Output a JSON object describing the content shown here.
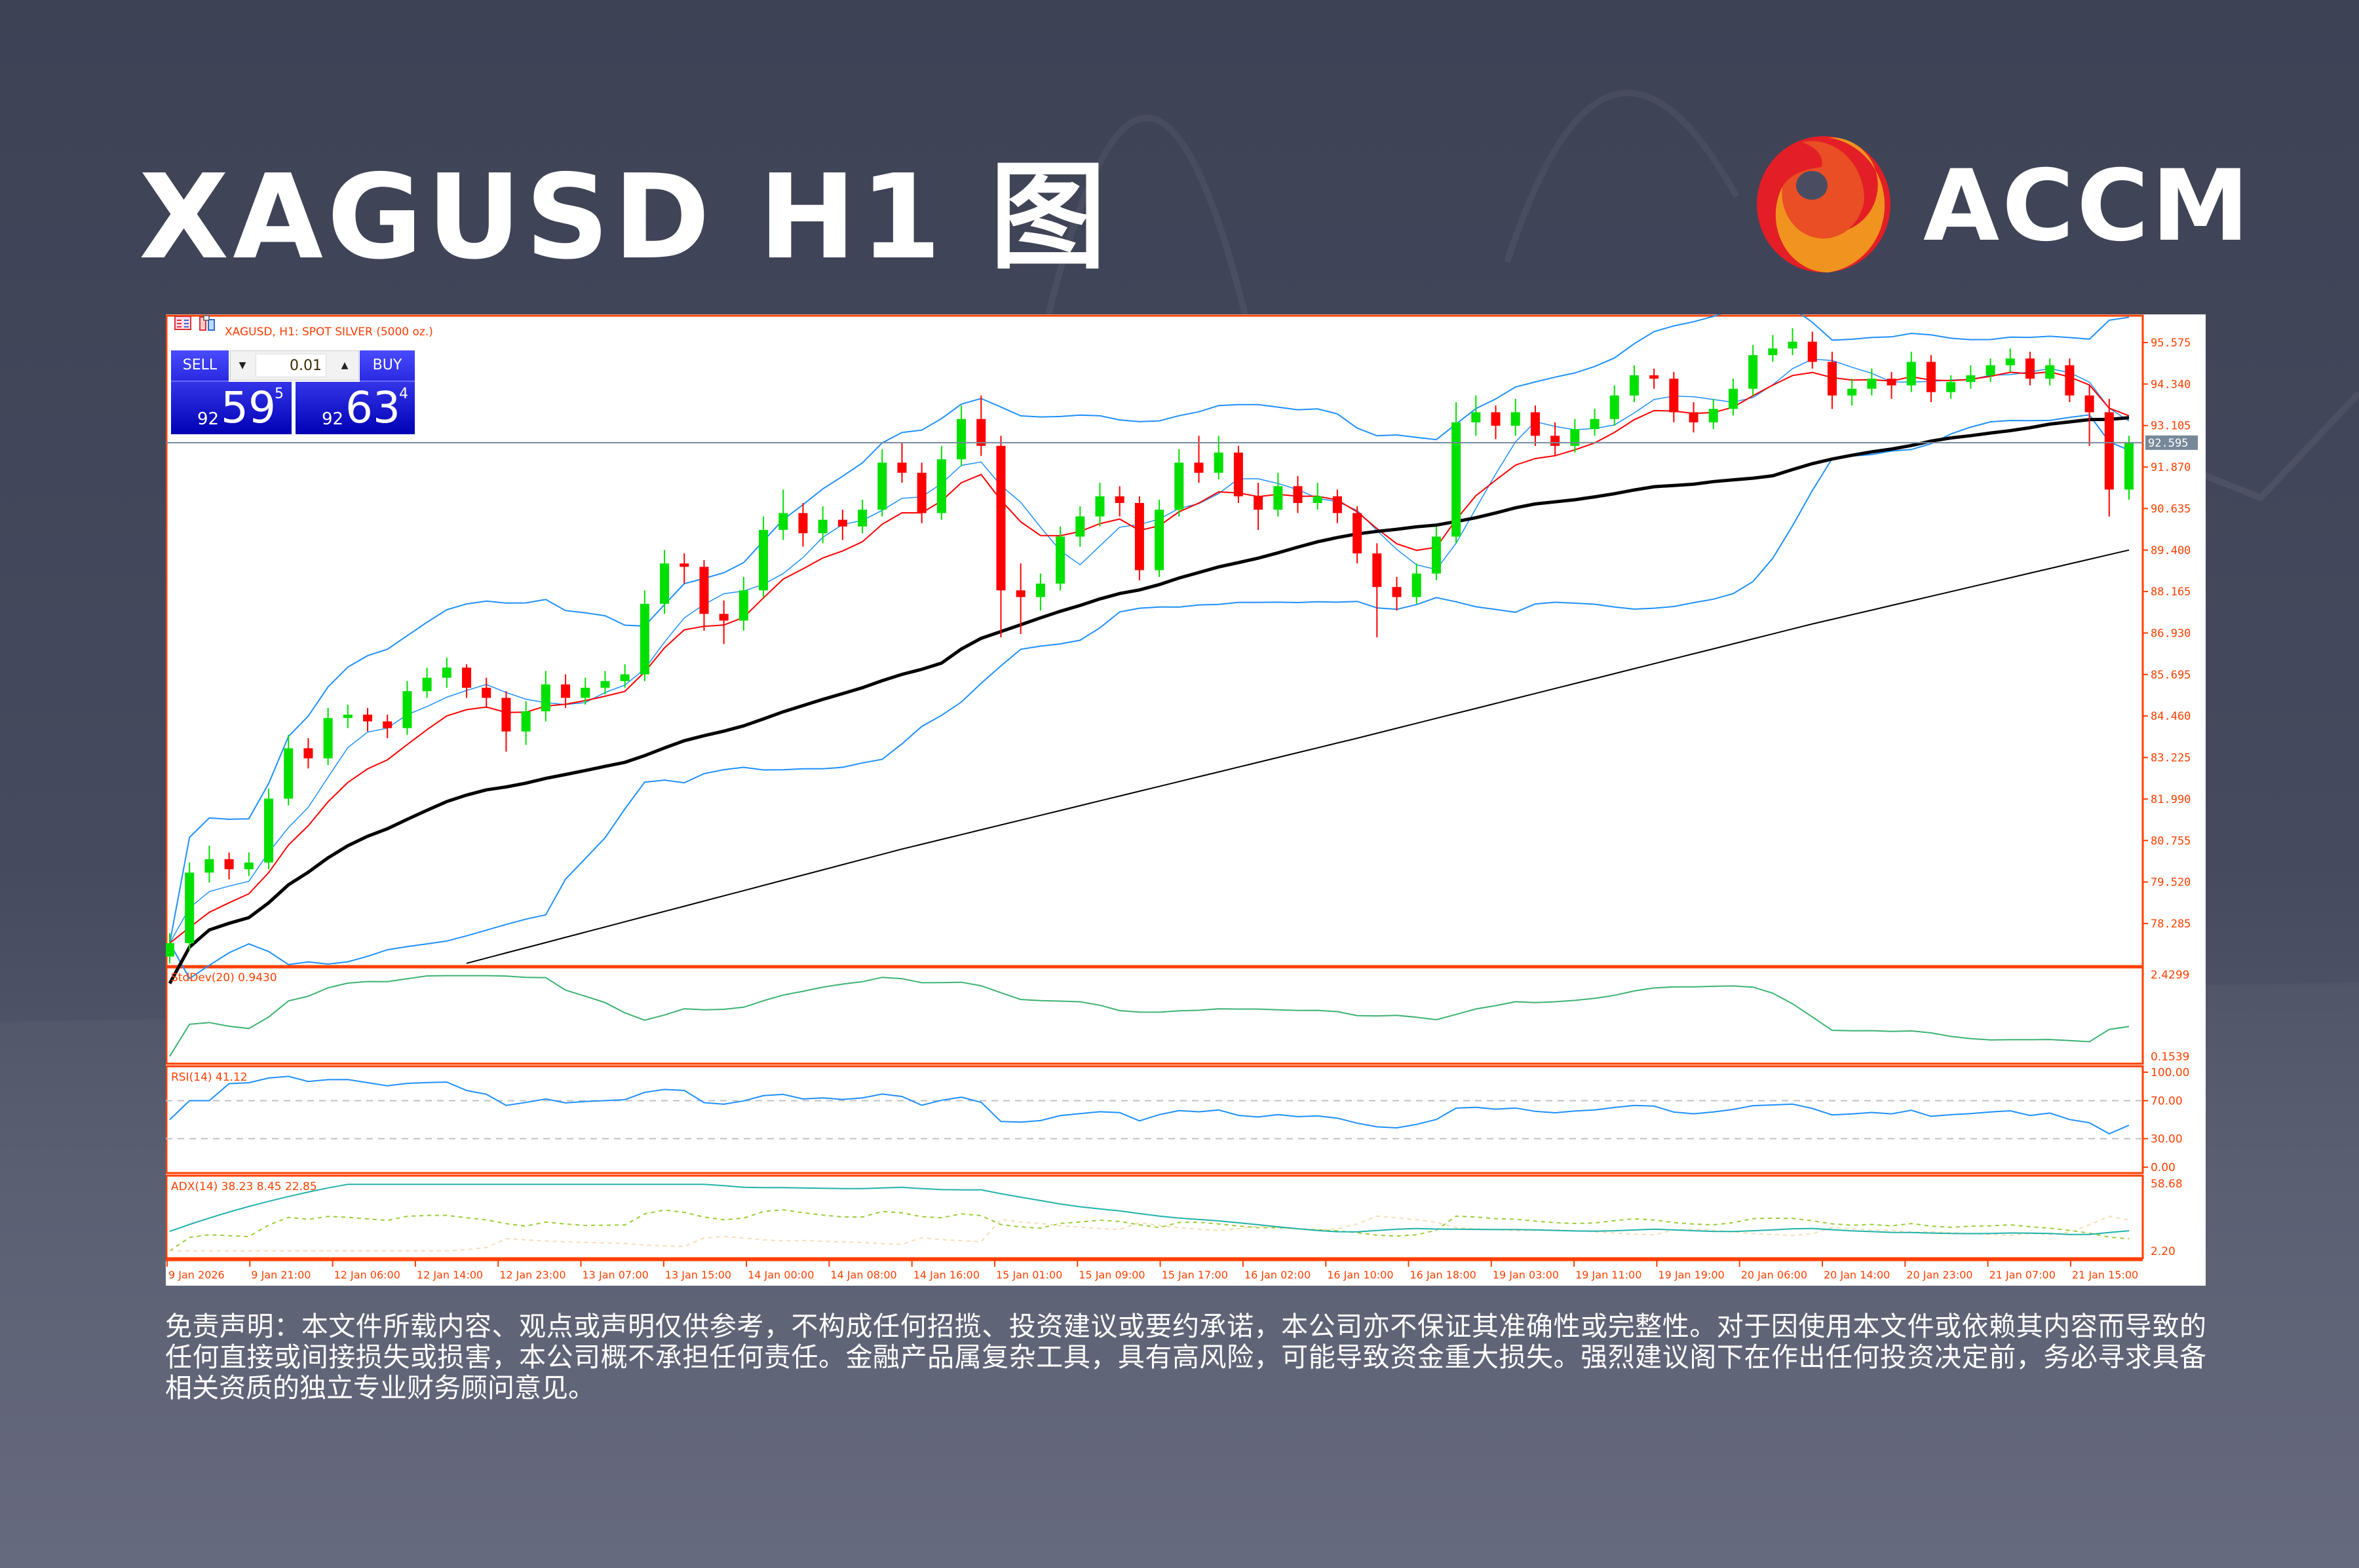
{
  "header": {
    "title": "XAGUSD H1 图"
  },
  "logo": {
    "text": "ACCM",
    "colors": {
      "red": "#e31e26",
      "orange_red": "#e94e24",
      "orange": "#f0931f"
    }
  },
  "chart_window": {
    "title": "XAGUSD, H1:  SPOT SILVER (5000 oz.)",
    "icons": [
      "one-click-trading-icon",
      "chart-properties-icon"
    ],
    "trade_panel": {
      "sell_label": "SELL",
      "buy_label": "BUY",
      "lot": "0.01",
      "sell_price": {
        "prefix": "92",
        "main": "59",
        "sup": "5"
      },
      "buy_price": {
        "prefix": "92",
        "main": "63",
        "sup": "4"
      }
    },
    "current_price_label": "92.595",
    "colors": {
      "bull": "#00e000",
      "bear": "#ff0000",
      "bands": "#1e90ff",
      "fast_ma": "#ff0000",
      "slow_ma": "#000000",
      "axis": "#ff4000"
    }
  },
  "chart_data": {
    "type": "candlestick",
    "symbol": "XAGUSD",
    "timeframe": "H1",
    "price_ticks": [
      "95.575",
      "94.340",
      "93.105",
      "91.870",
      "90.635",
      "89.400",
      "88.165",
      "86.930",
      "85.695",
      "84.460",
      "83.225",
      "81.990",
      "80.755",
      "79.520",
      "78.285"
    ],
    "current_price": 92.595,
    "ohlc": [
      [
        77.3,
        78.0,
        77.1,
        77.7
      ],
      [
        77.7,
        80.1,
        77.5,
        79.8
      ],
      [
        79.8,
        80.6,
        79.5,
        80.2
      ],
      [
        80.2,
        80.4,
        79.6,
        79.9
      ],
      [
        79.9,
        80.4,
        79.7,
        80.1
      ],
      [
        80.1,
        82.3,
        79.9,
        82.0
      ],
      [
        82.0,
        83.9,
        81.8,
        83.5
      ],
      [
        83.5,
        83.8,
        82.9,
        83.2
      ],
      [
        83.2,
        84.7,
        83.0,
        84.4
      ],
      [
        84.4,
        84.8,
        84.1,
        84.5
      ],
      [
        84.5,
        84.7,
        84.0,
        84.3
      ],
      [
        84.3,
        84.5,
        83.8,
        84.1
      ],
      [
        84.1,
        85.5,
        83.9,
        85.2
      ],
      [
        85.2,
        85.9,
        85.0,
        85.6
      ],
      [
        85.6,
        86.2,
        85.3,
        85.9
      ],
      [
        85.9,
        86.0,
        85.0,
        85.3
      ],
      [
        85.3,
        85.6,
        84.7,
        85.0
      ],
      [
        85.0,
        85.2,
        83.4,
        84.0
      ],
      [
        84.0,
        84.9,
        83.6,
        84.6
      ],
      [
        84.6,
        85.8,
        84.3,
        85.4
      ],
      [
        85.4,
        85.7,
        84.7,
        85.0
      ],
      [
        85.0,
        85.6,
        84.8,
        85.3
      ],
      [
        85.3,
        85.8,
        85.1,
        85.5
      ],
      [
        85.5,
        86.0,
        85.3,
        85.7
      ],
      [
        85.7,
        88.2,
        85.5,
        87.8
      ],
      [
        87.8,
        89.4,
        87.5,
        89.0
      ],
      [
        89.0,
        89.3,
        88.4,
        88.9
      ],
      [
        88.9,
        89.1,
        87.0,
        87.5
      ],
      [
        87.5,
        87.9,
        86.6,
        87.3
      ],
      [
        87.3,
        88.6,
        87.0,
        88.2
      ],
      [
        88.2,
        90.4,
        88.0,
        90.0
      ],
      [
        90.0,
        91.2,
        89.7,
        90.5
      ],
      [
        90.5,
        90.8,
        89.5,
        89.9
      ],
      [
        89.9,
        90.7,
        89.6,
        90.3
      ],
      [
        90.3,
        90.6,
        89.7,
        90.1
      ],
      [
        90.1,
        90.9,
        89.9,
        90.6
      ],
      [
        90.6,
        92.4,
        90.4,
        92.0
      ],
      [
        92.0,
        92.6,
        91.4,
        91.7
      ],
      [
        91.7,
        92.0,
        90.2,
        90.5
      ],
      [
        90.5,
        92.5,
        90.3,
        92.1
      ],
      [
        92.1,
        93.7,
        91.9,
        93.3
      ],
      [
        93.3,
        94.0,
        92.2,
        92.5
      ],
      [
        92.5,
        92.8,
        86.8,
        88.2
      ],
      [
        88.2,
        89.0,
        86.9,
        88.0
      ],
      [
        88.0,
        88.7,
        87.6,
        88.4
      ],
      [
        88.4,
        90.1,
        88.2,
        89.8
      ],
      [
        89.8,
        90.7,
        89.5,
        90.4
      ],
      [
        90.4,
        91.4,
        90.1,
        91.0
      ],
      [
        91.0,
        91.3,
        90.4,
        90.8
      ],
      [
        90.8,
        91.0,
        88.5,
        88.8
      ],
      [
        88.8,
        90.9,
        88.6,
        90.6
      ],
      [
        90.6,
        92.4,
        90.4,
        92.0
      ],
      [
        92.0,
        92.8,
        91.4,
        91.7
      ],
      [
        91.7,
        92.8,
        91.5,
        92.3
      ],
      [
        92.3,
        92.5,
        90.8,
        91.0
      ],
      [
        91.0,
        91.4,
        90.0,
        90.6
      ],
      [
        90.6,
        91.7,
        90.4,
        91.3
      ],
      [
        91.3,
        91.6,
        90.5,
        90.8
      ],
      [
        90.8,
        91.4,
        90.6,
        91.0
      ],
      [
        91.0,
        91.2,
        90.2,
        90.5
      ],
      [
        90.5,
        90.7,
        89.0,
        89.3
      ],
      [
        89.3,
        89.6,
        86.8,
        88.3
      ],
      [
        88.3,
        88.6,
        87.6,
        88.0
      ],
      [
        88.0,
        89.0,
        87.8,
        88.7
      ],
      [
        88.7,
        90.1,
        88.5,
        89.8
      ],
      [
        89.8,
        93.8,
        89.6,
        93.2
      ],
      [
        93.2,
        94.0,
        92.8,
        93.5
      ],
      [
        93.5,
        93.7,
        92.7,
        93.1
      ],
      [
        93.1,
        93.9,
        92.8,
        93.5
      ],
      [
        93.5,
        93.7,
        92.5,
        92.8
      ],
      [
        92.8,
        93.2,
        92.2,
        92.5
      ],
      [
        92.5,
        93.3,
        92.3,
        93.0
      ],
      [
        93.0,
        93.6,
        92.8,
        93.3
      ],
      [
        93.3,
        94.3,
        93.1,
        94.0
      ],
      [
        94.0,
        94.9,
        93.8,
        94.6
      ],
      [
        94.6,
        94.8,
        94.2,
        94.5
      ],
      [
        94.5,
        94.7,
        93.2,
        93.5
      ],
      [
        93.5,
        93.8,
        92.9,
        93.2
      ],
      [
        93.2,
        93.9,
        93.0,
        93.6
      ],
      [
        93.6,
        94.5,
        93.4,
        94.2
      ],
      [
        94.2,
        95.5,
        94.0,
        95.2
      ],
      [
        95.2,
        95.8,
        95.0,
        95.4
      ],
      [
        95.4,
        96.0,
        95.2,
        95.6
      ],
      [
        95.6,
        95.9,
        94.8,
        95.0
      ],
      [
        95.0,
        95.3,
        93.6,
        94.0
      ],
      [
        94.0,
        94.5,
        93.7,
        94.2
      ],
      [
        94.2,
        94.8,
        94.0,
        94.5
      ],
      [
        94.5,
        94.7,
        93.9,
        94.3
      ],
      [
        94.3,
        95.3,
        94.1,
        95.0
      ],
      [
        95.0,
        95.2,
        93.8,
        94.1
      ],
      [
        94.1,
        94.6,
        93.9,
        94.4
      ],
      [
        94.4,
        94.9,
        94.2,
        94.6
      ],
      [
        94.6,
        95.1,
        94.4,
        94.9
      ],
      [
        94.9,
        95.4,
        94.7,
        95.1
      ],
      [
        95.1,
        95.3,
        94.3,
        94.5
      ],
      [
        94.5,
        95.1,
        94.3,
        94.9
      ],
      [
        94.9,
        95.1,
        93.8,
        94.0
      ],
      [
        94.0,
        94.3,
        92.5,
        93.5
      ],
      [
        93.5,
        93.9,
        90.4,
        91.2
      ],
      [
        91.2,
        92.8,
        90.9,
        92.6
      ]
    ],
    "long_ma": {
      "candle_index": [
        15,
        37,
        60,
        83,
        99
      ],
      "values": [
        77.1,
        80.5,
        83.8,
        87.2,
        89.4
      ]
    },
    "time_labels": [
      "9 Jan 2026",
      "9 Jan 21:00",
      "12 Jan 06:00",
      "12 Jan 14:00",
      "12 Jan 23:00",
      "13 Jan 07:00",
      "13 Jan 15:00",
      "14 Jan 00:00",
      "14 Jan 08:00",
      "14 Jan 16:00",
      "15 Jan 01:00",
      "15 Jan 09:00",
      "15 Jan 17:00",
      "16 Jan 02:00",
      "16 Jan 10:00",
      "16 Jan 18:00",
      "19 Jan 03:00",
      "19 Jan 11:00",
      "19 Jan 19:00",
      "20 Jan 06:00",
      "20 Jan 14:00",
      "20 Jan 23:00",
      "21 Jan 07:00",
      "21 Jan 15:00"
    ],
    "indicators": {
      "stddev": {
        "label": "StdDev(20) 0.9430",
        "ticks": [
          "2.4299",
          "0.1539"
        ],
        "range": [
          0.1539,
          2.4299
        ],
        "color": "#3cb371"
      },
      "rsi": {
        "label": "RSI(14) 41.12",
        "ticks": [
          "100.00",
          "70.00",
          "30.00",
          "0.00"
        ],
        "range": [
          0,
          100
        ],
        "levels": [
          30,
          70
        ],
        "color": "#1e90ff"
      },
      "adx": {
        "label": "ADX(14) 38.23 8.45 22.85",
        "ticks": [
          "58.68",
          "2.20"
        ],
        "range": [
          2.2,
          58.68
        ],
        "colors": {
          "adx": "#20b2aa",
          "plus_di": "#9acd32",
          "minus_di": "#f5deb3"
        }
      }
    }
  },
  "disclaimer": "免责声明：本文件所载内容、观点或声明仅供参考，不构成任何招揽、投资建议或要约承诺，本公司亦不保证其准确性或完整性。对于因使用本文件或依赖其内容而导致的任何直接或间接损失或损害，本公司概不承担任何责任。金融产品属复杂工具，具有高风险，可能导致资金重大损失。强烈建议阁下在作出任何投资决定前，务必寻求具备相关资质的独立专业财务顾问意见。"
}
